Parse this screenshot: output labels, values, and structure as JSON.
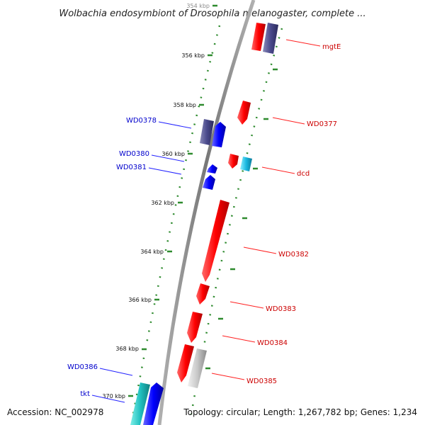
{
  "title": "Wolbachia endosymbiont of Drosophila melanogaster, complete ...",
  "accession": "Accession: NC_002978",
  "topology": "Topology: circular; Length: 1,267,782 bp; Genes: 1,234",
  "colors": {
    "forward_gene": "#ff1a1a",
    "reverse_gene": "#1a1aff",
    "hypothetical_gene": "#4a4a8c",
    "rna_gene": "#22b8d8",
    "pseudo_gene": "#c8c8c8",
    "backbone": "#808080",
    "tick": "#2e8b2e",
    "forward_label": "#cc0000",
    "reverse_label": "#0000cc"
  },
  "kbp_ticks": [
    "354 kbp",
    "356 kbp",
    "358 kbp",
    "360 kbp",
    "362 kbp",
    "364 kbp",
    "366 kbp",
    "368 kbp",
    "370 kbp"
  ],
  "genes": [
    {
      "label": "mgtE",
      "strand": "forward"
    },
    {
      "label": "WD0377",
      "strand": "forward"
    },
    {
      "label": "dcd",
      "strand": "forward"
    },
    {
      "label": "WD0382",
      "strand": "forward"
    },
    {
      "label": "WD0383",
      "strand": "forward"
    },
    {
      "label": "WD0384",
      "strand": "forward"
    },
    {
      "label": "WD0385",
      "strand": "forward"
    },
    {
      "label": "WD0378",
      "strand": "reverse"
    },
    {
      "label": "WD0380",
      "strand": "reverse"
    },
    {
      "label": "WD0381",
      "strand": "reverse"
    },
    {
      "label": "WD0386",
      "strand": "reverse"
    },
    {
      "label": "tkt",
      "strand": "reverse"
    }
  ]
}
